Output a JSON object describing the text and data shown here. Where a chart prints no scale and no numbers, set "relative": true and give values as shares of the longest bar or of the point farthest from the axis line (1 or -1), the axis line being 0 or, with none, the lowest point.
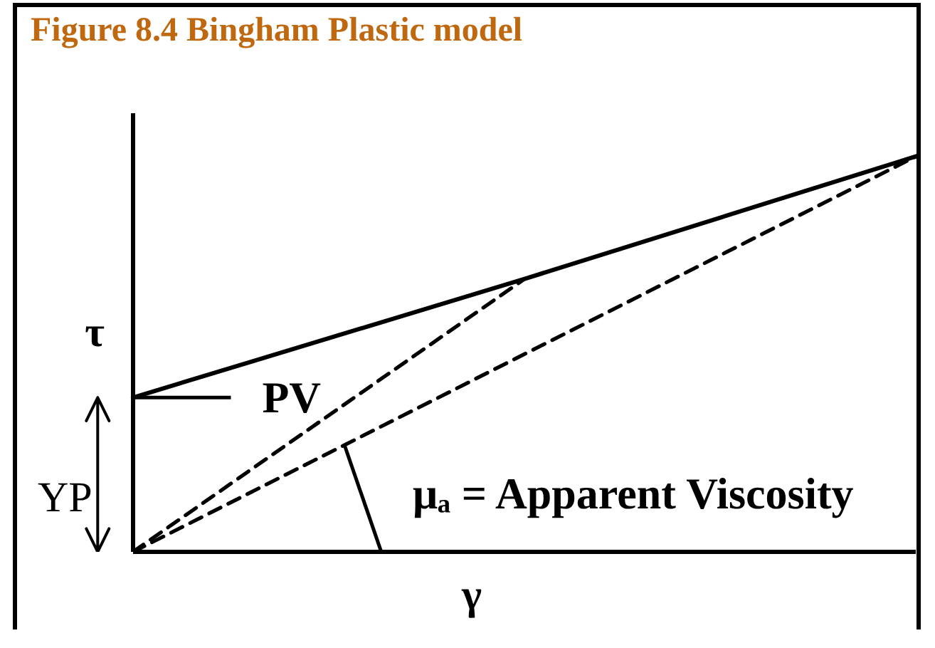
{
  "chart_data": {
    "type": "line",
    "title": "Figure 8.4 Bingham Plastic model",
    "xlabel": "γ",
    "ylabel": "τ",
    "categories": [
      null,
      null,
      null
    ],
    "relative": true,
    "series": [
      {
        "color": "#000000",
        "line_style": "solid",
        "values": [
          0.39,
          0.69,
          1
        ]
      },
      {
        "color": "#000000",
        "line_style": "dashed",
        "values": [
          0,
          0.69,
          null
        ]
      },
      {
        "color": "#000000",
        "line_style": "dashed",
        "values": [
          0,
          0.5,
          1
        ]
      }
    ],
    "annotations": [
      "PV",
      "YP",
      "μₐ = Apparent Viscosity"
    ]
  }
}
